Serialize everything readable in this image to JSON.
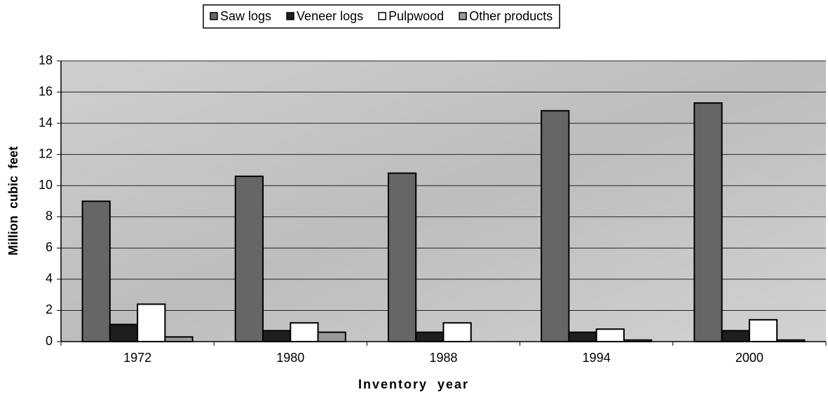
{
  "chart_data": {
    "type": "bar",
    "x_label": "Inventory  year",
    "y_label": "Million  cubic  feet",
    "categories": [
      "1972",
      "1980",
      "1988",
      "1994",
      "2000"
    ],
    "series": [
      {
        "name": "Saw logs",
        "color": "#666666",
        "values": [
          9.0,
          10.6,
          10.8,
          14.8,
          15.3
        ]
      },
      {
        "name": "Veneer logs",
        "color": "#1e1e1e",
        "values": [
          1.1,
          0.7,
          0.6,
          0.6,
          0.7
        ]
      },
      {
        "name": "Pulpwood",
        "color": "#ffffff",
        "values": [
          2.4,
          1.2,
          1.2,
          0.8,
          1.4
        ]
      },
      {
        "name": "Other products",
        "color": "#999999",
        "values": [
          0.3,
          0.6,
          0,
          0.1,
          0.1
        ]
      }
    ],
    "ylim": [
      0,
      18
    ],
    "yticks": [
      0,
      2,
      4,
      6,
      8,
      10,
      12,
      14,
      16,
      18
    ],
    "grid": true,
    "legend": "top"
  }
}
